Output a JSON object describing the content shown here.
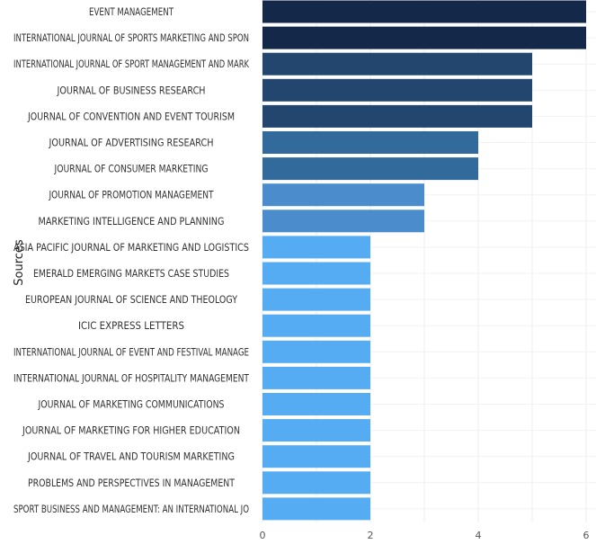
{
  "chart_data": {
    "type": "bar",
    "orientation": "horizontal",
    "ylabel": "Sources",
    "xlabel": "",
    "xlim": [
      0,
      6
    ],
    "xticks": [
      0,
      2,
      4,
      6
    ],
    "grid": true,
    "categories": [
      "EVENT MANAGEMENT",
      "INTERNATIONAL JOURNAL OF SPORTS MARKETING AND SPON",
      "INTERNATIONAL JOURNAL OF SPORT MANAGEMENT AND MARK",
      "JOURNAL OF BUSINESS RESEARCH",
      "JOURNAL OF CONVENTION AND EVENT TOURISM",
      "JOURNAL OF ADVERTISING RESEARCH",
      "JOURNAL OF CONSUMER MARKETING",
      "JOURNAL OF PROMOTION MANAGEMENT",
      "MARKETING INTELLIGENCE AND PLANNING",
      "ASIA PACIFIC JOURNAL OF MARKETING AND LOGISTICS",
      "EMERALD EMERGING MARKETS CASE STUDIES",
      "EUROPEAN JOURNAL OF SCIENCE AND THEOLOGY",
      "ICIC EXPRESS LETTERS",
      "INTERNATIONAL JOURNAL OF EVENT AND FESTIVAL MANAGE",
      "INTERNATIONAL JOURNAL OF HOSPITALITY MANAGEMENT",
      "JOURNAL OF MARKETING COMMUNICATIONS",
      "JOURNAL OF MARKETING FOR HIGHER EDUCATION",
      "JOURNAL OF TRAVEL AND TOURISM MARKETING",
      "PROBLEMS AND PERSPECTIVES IN MANAGEMENT",
      "SPORT BUSINESS AND MANAGEMENT: AN INTERNATIONAL JO"
    ],
    "values": [
      6,
      6,
      5,
      5,
      5,
      4,
      4,
      3,
      3,
      2,
      2,
      2,
      2,
      2,
      2,
      2,
      2,
      2,
      2,
      2
    ],
    "colors_by_value": {
      "6": "#14284a",
      "5": "#23466e",
      "4": "#326a9c",
      "3": "#4a8ccc",
      "2": "#56acf2"
    }
  }
}
